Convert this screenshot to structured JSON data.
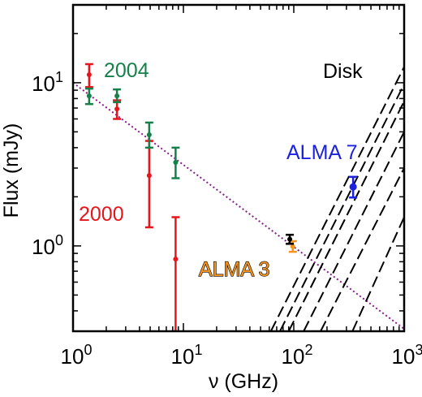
{
  "chart_data": {
    "type": "scatter",
    "xscale": "log",
    "yscale": "log",
    "xlim": [
      1,
      1000
    ],
    "ylim": [
      0.3,
      30
    ],
    "xlabel": "ν (GHz)",
    "ylabel": "Flux (mJy)",
    "x_ticks": [
      {
        "value": 1,
        "base": "10",
        "exp": "0"
      },
      {
        "value": 10,
        "base": "10",
        "exp": "1"
      },
      {
        "value": 100,
        "base": "10",
        "exp": "2"
      },
      {
        "value": 1000,
        "base": "10",
        "exp": "3"
      }
    ],
    "y_ticks": [
      {
        "value": 1,
        "base": "10",
        "exp": "0"
      },
      {
        "value": 10,
        "base": "10",
        "exp": "1"
      }
    ],
    "grid": false,
    "colors": {
      "red": "#e8141b",
      "green": "#16804a",
      "blue": "#1a22e0",
      "orange": "#f7941d",
      "purple": "#8b1a8b",
      "black": "#000000"
    },
    "series": [
      {
        "name": "2000",
        "color": "#e8141b",
        "points": [
          {
            "x": 1.4,
            "y": 11.2,
            "lo": 9.4,
            "hi": 13.0
          },
          {
            "x": 2.5,
            "y": 6.9,
            "lo": 6.0,
            "hi": 7.8
          },
          {
            "x": 4.9,
            "y": 2.7,
            "lo": 1.3,
            "hi": 4.4
          },
          {
            "x": 8.5,
            "y": 0.83,
            "lo": 0.3,
            "hi": 1.5
          }
        ]
      },
      {
        "name": "2004",
        "color": "#16804a",
        "points": [
          {
            "x": 1.4,
            "y": 8.3,
            "lo": 7.4,
            "hi": 9.2
          },
          {
            "x": 2.5,
            "y": 8.3,
            "lo": 7.6,
            "hi": 9.1
          },
          {
            "x": 4.9,
            "y": 4.8,
            "lo": 4.0,
            "hi": 5.7
          },
          {
            "x": 8.5,
            "y": 3.25,
            "lo": 2.6,
            "hi": 4.0
          }
        ]
      },
      {
        "name": "ALMA 3",
        "color": "#f7941d",
        "points": [
          {
            "x": 98,
            "y": 0.99,
            "lo": 0.92,
            "hi": 1.07
          }
        ]
      },
      {
        "name": "ALMA 3 (black)",
        "color": "#000000",
        "points": [
          {
            "x": 92,
            "y": 1.1,
            "lo": 1.03,
            "hi": 1.17
          }
        ]
      },
      {
        "name": "ALMA 7",
        "color": "#1a22e0",
        "points": [
          {
            "x": 345,
            "y": 2.3,
            "lo": 1.98,
            "hi": 2.65
          }
        ]
      }
    ],
    "fit_line": {
      "color": "#8b1a8b",
      "x": [
        1,
        1000
      ],
      "y": [
        10.0,
        0.31
      ]
    },
    "disk_curves": [
      {
        "x": [
          62,
          1000
        ],
        "y": [
          0.3,
          12.5
        ]
      },
      {
        "x": [
          75,
          1000
        ],
        "y": [
          0.3,
          9.8
        ]
      },
      {
        "x": [
          90,
          1000
        ],
        "y": [
          0.3,
          7.7
        ]
      },
      {
        "x": [
          123,
          1000
        ],
        "y": [
          0.3,
          5.0
        ]
      },
      {
        "x": [
          175,
          1000
        ],
        "y": [
          0.3,
          3.0
        ]
      },
      {
        "x": [
          340,
          1000
        ],
        "y": [
          0.3,
          1.5
        ]
      }
    ],
    "annotations": [
      {
        "text": "2004",
        "color": "#16804a"
      },
      {
        "text": "2000",
        "color": "#e8141b"
      },
      {
        "text": "Disk",
        "color": "#000000"
      },
      {
        "text": "ALMA 7",
        "color": "#1a22e0"
      },
      {
        "text": "ALMA 3",
        "color": "#f7941d"
      }
    ]
  }
}
